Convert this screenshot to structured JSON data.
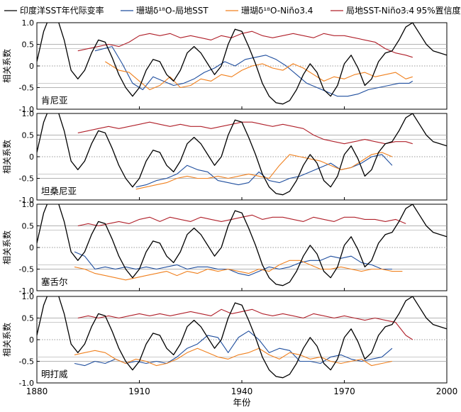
{
  "figure": {
    "xlabel": "年份",
    "ylabel": "相关系数"
  },
  "legend": [
    {
      "key": "iod",
      "label": "印度洋SST年代际变率",
      "color": "#000000"
    },
    {
      "key": "coral_sst",
      "label": "珊瑚δ¹⁸O-局地SST",
      "color": "#1f4e9e"
    },
    {
      "key": "coral_nino",
      "label": "珊瑚δ¹⁸O-Niño3.4",
      "color": "#f0801e"
    },
    {
      "key": "sst_nino",
      "label": "局地SST-Niño3.4",
      "color": "#b0202a"
    },
    {
      "key": "sig95",
      "label": "95%置信度检验",
      "color": "#999999"
    }
  ],
  "chart_data": {
    "type": "line",
    "x_range": [
      1880,
      2000
    ],
    "y_range": [
      -1.0,
      1.0
    ],
    "x_ticks": [
      1880,
      1910,
      1940,
      1970,
      2000
    ],
    "y_ticks": [
      "1.0",
      "0.5",
      "0",
      "-0.5",
      "-1.0"
    ],
    "grid": "horizontal lines at ±0.5",
    "significance_levels": [
      0.4,
      -0.4
    ],
    "shared_iod_series": {
      "name": "印度洋SST年代际变率",
      "x": [
        1880,
        1882,
        1884,
        1886,
        1888,
        1890,
        1892,
        1894,
        1896,
        1898,
        1900,
        1902,
        1904,
        1906,
        1908,
        1910,
        1912,
        1914,
        1916,
        1918,
        1920,
        1922,
        1924,
        1926,
        1928,
        1930,
        1932,
        1934,
        1936,
        1938,
        1940,
        1942,
        1944,
        1946,
        1948,
        1950,
        1952,
        1954,
        1956,
        1958,
        1960,
        1962,
        1964,
        1966,
        1968,
        1970,
        1972,
        1974,
        1976,
        1978,
        1980,
        1982,
        1984,
        1986,
        1988,
        1990,
        1992,
        1994,
        1996,
        1998,
        2000
      ],
      "y": [
        0.1,
        0.8,
        1.2,
        1.1,
        0.6,
        -0.1,
        -0.3,
        -0.1,
        0.3,
        0.6,
        0.55,
        0.2,
        -0.2,
        -0.5,
        -0.7,
        -0.5,
        -0.1,
        0.15,
        0.1,
        -0.2,
        -0.35,
        -0.1,
        0.3,
        0.45,
        0.3,
        0.05,
        -0.2,
        0.0,
        0.5,
        0.85,
        0.8,
        0.45,
        0.05,
        -0.4,
        -0.7,
        -0.85,
        -0.88,
        -0.8,
        -0.55,
        -0.2,
        0.05,
        -0.15,
        -0.55,
        -0.7,
        -0.45,
        0.05,
        0.25,
        -0.05,
        -0.45,
        -0.3,
        0.1,
        0.3,
        0.35,
        0.6,
        0.9,
        1.0,
        0.75,
        0.5,
        0.35,
        0.3,
        0.25
      ]
    },
    "panels": [
      {
        "label": "肯尼亚",
        "series": [
          {
            "key": "coral_sst",
            "x": [
              1897,
              1902,
              1905,
              1908,
              1911,
              1914,
              1917,
              1920,
              1923,
              1926,
              1929,
              1932,
              1935,
              1938,
              1941,
              1944,
              1947,
              1950,
              1953,
              1956,
              1959,
              1962,
              1965,
              1968,
              1971,
              1974,
              1977,
              1980,
              1983,
              1986,
              1989,
              1990
            ],
            "y": [
              0.35,
              0.45,
              0.05,
              -0.4,
              -0.55,
              -0.25,
              -0.35,
              -0.45,
              -0.4,
              -0.3,
              -0.15,
              -0.05,
              0.1,
              0.0,
              0.15,
              0.2,
              0.25,
              0.15,
              0.0,
              -0.2,
              -0.4,
              -0.5,
              -0.6,
              -0.7,
              -0.7,
              -0.65,
              -0.55,
              -0.5,
              -0.45,
              -0.4,
              -0.4,
              -0.35
            ]
          },
          {
            "key": "coral_nino",
            "x": [
              1900,
              1904,
              1907,
              1910,
              1913,
              1916,
              1919,
              1922,
              1925,
              1928,
              1931,
              1934,
              1937,
              1940,
              1943,
              1946,
              1949,
              1952,
              1955,
              1958,
              1961,
              1964,
              1967,
              1970,
              1973,
              1976,
              1979,
              1982,
              1985,
              1988,
              1990
            ],
            "y": [
              0.1,
              -0.1,
              -0.15,
              -0.35,
              -0.55,
              -0.45,
              -0.25,
              -0.5,
              -0.45,
              -0.3,
              -0.35,
              -0.2,
              -0.25,
              -0.1,
              0.0,
              0.05,
              -0.05,
              -0.1,
              0.05,
              -0.05,
              -0.2,
              -0.35,
              -0.25,
              -0.3,
              -0.2,
              -0.15,
              -0.25,
              -0.2,
              -0.15,
              -0.3,
              -0.25
            ]
          },
          {
            "key": "sst_nino",
            "x": [
              1892,
              1895,
              1898,
              1901,
              1904,
              1907,
              1910,
              1913,
              1916,
              1919,
              1922,
              1925,
              1928,
              1931,
              1934,
              1937,
              1940,
              1943,
              1946,
              1949,
              1952,
              1955,
              1958,
              1961,
              1964,
              1967,
              1970,
              1973,
              1976,
              1979,
              1982,
              1985,
              1988,
              1990
            ],
            "y": [
              0.35,
              0.4,
              0.45,
              0.5,
              0.45,
              0.55,
              0.7,
              0.75,
              0.7,
              0.75,
              0.65,
              0.7,
              0.65,
              0.6,
              0.7,
              0.65,
              0.75,
              0.8,
              0.7,
              0.65,
              0.7,
              0.75,
              0.7,
              0.65,
              0.75,
              0.7,
              0.7,
              0.65,
              0.6,
              0.55,
              0.4,
              0.3,
              0.25,
              0.2
            ]
          }
        ]
      },
      {
        "label": "坦桑尼亚",
        "series": [
          {
            "key": "coral_sst",
            "x": [
              1909,
              1912,
              1915,
              1918,
              1921,
              1924,
              1927,
              1930,
              1933,
              1936,
              1939,
              1942,
              1945,
              1948,
              1951,
              1954,
              1957,
              1960,
              1963,
              1966,
              1969,
              1972,
              1975,
              1978,
              1981,
              1984
            ],
            "y": [
              -0.7,
              -0.65,
              -0.55,
              -0.5,
              -0.4,
              -0.2,
              -0.3,
              -0.35,
              -0.55,
              -0.6,
              -0.65,
              -0.6,
              -0.35,
              -0.55,
              -0.6,
              -0.5,
              -0.45,
              -0.35,
              -0.25,
              -0.15,
              -0.3,
              -0.25,
              -0.15,
              0.0,
              0.05,
              -0.2
            ]
          },
          {
            "key": "coral_nino",
            "x": [
              1909,
              1912,
              1915,
              1918,
              1921,
              1924,
              1927,
              1930,
              1933,
              1936,
              1939,
              1942,
              1945,
              1948,
              1951,
              1954,
              1957,
              1960,
              1963,
              1966,
              1969,
              1972,
              1975,
              1978,
              1981,
              1984
            ],
            "y": [
              -0.75,
              -0.7,
              -0.65,
              -0.6,
              -0.5,
              -0.45,
              -0.5,
              -0.5,
              -0.45,
              -0.5,
              -0.45,
              -0.4,
              -0.45,
              -0.5,
              -0.2,
              0.05,
              0.0,
              -0.05,
              -0.1,
              -0.2,
              -0.3,
              -0.25,
              -0.1,
              0.05,
              0.1,
              0.0
            ]
          },
          {
            "key": "sst_nino",
            "x": [
              1892,
              1895,
              1898,
              1901,
              1904,
              1907,
              1910,
              1913,
              1916,
              1919,
              1922,
              1925,
              1928,
              1931,
              1934,
              1937,
              1940,
              1943,
              1946,
              1949,
              1952,
              1955,
              1958,
              1961,
              1964,
              1967,
              1970,
              1973,
              1976,
              1979,
              1982,
              1985,
              1988,
              1990
            ],
            "y": [
              0.55,
              0.6,
              0.65,
              0.7,
              0.65,
              0.7,
              0.75,
              0.8,
              0.75,
              0.7,
              0.75,
              0.7,
              0.7,
              0.65,
              0.7,
              0.75,
              0.8,
              0.8,
              0.75,
              0.7,
              0.75,
              0.7,
              0.65,
              0.5,
              0.4,
              0.35,
              0.3,
              0.35,
              0.4,
              0.35,
              0.3,
              0.35,
              0.35,
              0.3
            ]
          }
        ]
      },
      {
        "label": "塞舌尔",
        "series": [
          {
            "key": "coral_sst",
            "x": [
              1891,
              1894,
              1897,
              1900,
              1903,
              1906,
              1909,
              1912,
              1915,
              1918,
              1921,
              1924,
              1927,
              1930,
              1933,
              1936,
              1939,
              1942,
              1945,
              1948,
              1951,
              1954,
              1957,
              1960,
              1963,
              1966,
              1969,
              1972,
              1975,
              1978,
              1981,
              1984
            ],
            "y": [
              -0.1,
              -0.2,
              -0.5,
              -0.45,
              -0.5,
              -0.45,
              -0.5,
              -0.45,
              -0.5,
              -0.45,
              -0.4,
              -0.5,
              -0.45,
              -0.45,
              -0.5,
              -0.5,
              -0.6,
              -0.65,
              -0.55,
              -0.45,
              -0.5,
              -0.45,
              -0.35,
              -0.3,
              -0.3,
              -0.2,
              -0.25,
              -0.2,
              -0.35,
              -0.4,
              -0.5,
              -0.5
            ]
          },
          {
            "key": "coral_nino",
            "x": [
              1891,
              1894,
              1897,
              1900,
              1903,
              1906,
              1909,
              1912,
              1915,
              1918,
              1921,
              1924,
              1927,
              1930,
              1933,
              1936,
              1939,
              1942,
              1945,
              1948,
              1951,
              1954,
              1957,
              1960,
              1963,
              1966,
              1969,
              1972,
              1975,
              1978,
              1981,
              1984,
              1987
            ],
            "y": [
              -0.45,
              -0.5,
              -0.6,
              -0.65,
              -0.7,
              -0.75,
              -0.7,
              -0.65,
              -0.6,
              -0.55,
              -0.65,
              -0.55,
              -0.6,
              -0.5,
              -0.55,
              -0.5,
              -0.55,
              -0.6,
              -0.5,
              -0.55,
              -0.4,
              -0.3,
              -0.3,
              -0.4,
              -0.5,
              -0.5,
              -0.45,
              -0.5,
              -0.55,
              -0.5,
              -0.5,
              -0.55,
              -0.55
            ]
          },
          {
            "key": "sst_nino",
            "x": [
              1892,
              1895,
              1898,
              1901,
              1904,
              1907,
              1910,
              1913,
              1916,
              1919,
              1922,
              1925,
              1928,
              1931,
              1934,
              1937,
              1940,
              1943,
              1946,
              1949,
              1952,
              1955,
              1958,
              1961,
              1964,
              1967,
              1970,
              1973,
              1976,
              1979,
              1982,
              1985,
              1988
            ],
            "y": [
              0.5,
              0.55,
              0.5,
              0.55,
              0.6,
              0.55,
              0.65,
              0.7,
              0.6,
              0.7,
              0.65,
              0.6,
              0.7,
              0.65,
              0.6,
              0.65,
              0.7,
              0.75,
              0.65,
              0.7,
              0.7,
              0.65,
              0.6,
              0.7,
              0.65,
              0.6,
              0.7,
              0.7,
              0.65,
              0.65,
              0.6,
              0.65,
              0.55
            ]
          }
        ]
      },
      {
        "label": "明打威",
        "series": [
          {
            "key": "coral_sst",
            "x": [
              1891,
              1894,
              1897,
              1900,
              1903,
              1906,
              1909,
              1912,
              1915,
              1918,
              1921,
              1924,
              1927,
              1930,
              1933,
              1936,
              1939,
              1942,
              1945,
              1948,
              1951,
              1954,
              1957,
              1960,
              1963,
              1966,
              1969,
              1972,
              1975,
              1978,
              1981,
              1984
            ],
            "y": [
              -0.55,
              -0.6,
              -0.5,
              -0.55,
              -0.45,
              -0.55,
              -0.5,
              -0.55,
              -0.5,
              -0.55,
              -0.4,
              -0.2,
              -0.1,
              0.1,
              0.05,
              -0.3,
              0.05,
              0.2,
              0.0,
              -0.3,
              -0.2,
              -0.25,
              -0.5,
              -0.5,
              -0.55,
              -0.4,
              -0.35,
              -0.45,
              -0.5,
              -0.45,
              -0.4,
              -0.2
            ]
          },
          {
            "key": "coral_nino",
            "x": [
              1891,
              1894,
              1897,
              1900,
              1903,
              1906,
              1909,
              1912,
              1915,
              1918,
              1921,
              1924,
              1927,
              1930,
              1933,
              1936,
              1939,
              1942,
              1945,
              1948,
              1951,
              1954,
              1957,
              1960,
              1963,
              1966,
              1969,
              1972,
              1975,
              1978,
              1981,
              1984
            ],
            "y": [
              -0.35,
              -0.3,
              -0.25,
              -0.3,
              -0.45,
              -0.55,
              -0.45,
              -0.5,
              -0.6,
              -0.55,
              -0.45,
              -0.3,
              -0.2,
              -0.3,
              -0.4,
              -0.45,
              -0.35,
              -0.3,
              -0.2,
              -0.35,
              -0.45,
              -0.3,
              -0.35,
              -0.45,
              -0.4,
              -0.5,
              -0.55,
              -0.5,
              -0.45,
              -0.6,
              -0.55,
              -0.5
            ]
          },
          {
            "key": "sst_nino",
            "x": [
              1892,
              1895,
              1898,
              1901,
              1904,
              1907,
              1910,
              1913,
              1916,
              1919,
              1922,
              1925,
              1928,
              1931,
              1934,
              1937,
              1940,
              1943,
              1946,
              1949,
              1952,
              1955,
              1958,
              1961,
              1964,
              1967,
              1970,
              1973,
              1976,
              1979,
              1982,
              1985,
              1988,
              1990
            ],
            "y": [
              0.5,
              0.55,
              0.5,
              0.55,
              0.5,
              0.55,
              0.6,
              0.55,
              0.6,
              0.55,
              0.6,
              0.65,
              0.6,
              0.55,
              0.7,
              0.6,
              0.65,
              0.7,
              0.6,
              0.55,
              0.6,
              0.55,
              0.5,
              0.6,
              0.55,
              0.5,
              0.55,
              0.5,
              0.45,
              0.5,
              0.45,
              0.4,
              0.1,
              0.0
            ]
          }
        ]
      }
    ]
  }
}
